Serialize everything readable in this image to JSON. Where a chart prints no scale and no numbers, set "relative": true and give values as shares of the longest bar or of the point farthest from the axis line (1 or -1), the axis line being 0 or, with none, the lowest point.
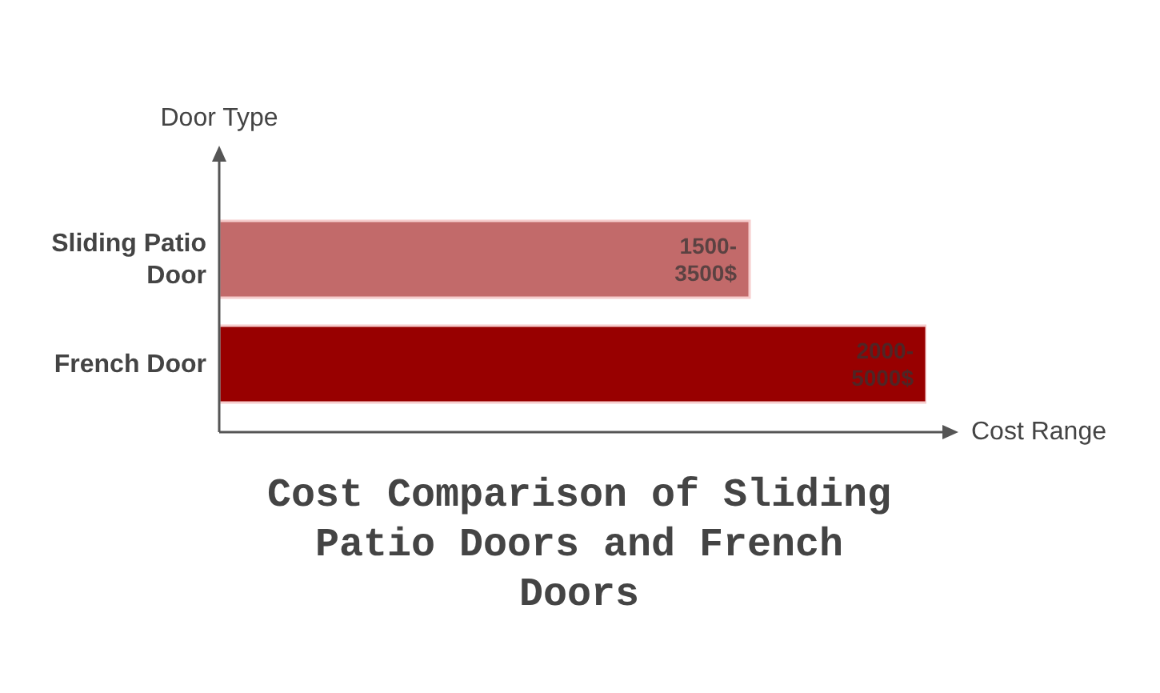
{
  "chart_data": {
    "type": "bar",
    "orientation": "horizontal",
    "relative": true,
    "title": "Cost Comparison of Sliding Patio Doors and French Doors",
    "xlabel": "Cost Range",
    "ylabel": "Door Type",
    "categories": [
      "Sliding Patio Door",
      "French Door"
    ],
    "values": [
      0.75,
      1
    ],
    "colors": [
      "#c26a6a",
      "#980000"
    ],
    "annotations": [
      {
        "text": "1500-3500$",
        "y": "Sliding Patio Door"
      },
      {
        "text": "2000-5000$",
        "y": "French Door"
      }
    ]
  }
}
